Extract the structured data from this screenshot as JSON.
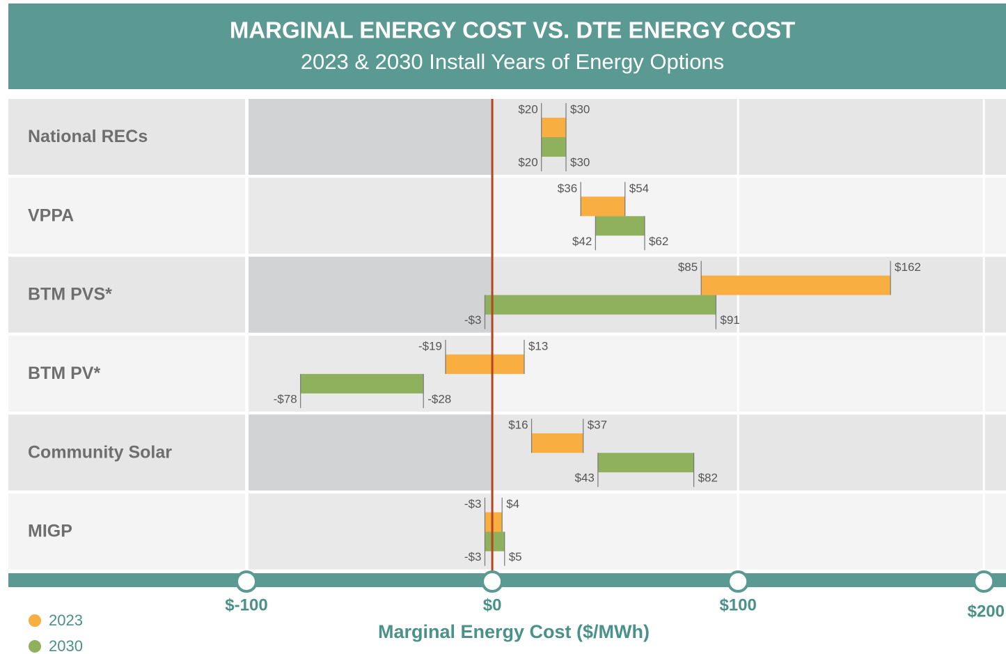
{
  "chart_data": {
    "type": "range_bar",
    "title": "MARGINAL ENERGY COST VS. DTE ENERGY COST",
    "subtitle": "2023 & 2030 Install Years of Energy Options",
    "xlabel": "Marginal Energy Cost ($/MWh)",
    "categories": [
      "National RECs",
      "VPPA",
      "BTM PVS*",
      "BTM PV*",
      "Community Solar",
      "MIGP"
    ],
    "series": [
      {
        "name": "2023",
        "color": "#f9ae42",
        "values": [
          [
            20,
            30
          ],
          [
            36,
            54
          ],
          [
            85,
            162
          ],
          [
            -19,
            13
          ],
          [
            16,
            37
          ],
          [
            -3,
            4
          ]
        ],
        "value_labels": [
          [
            "$20",
            "$30"
          ],
          [
            "$36",
            "$54"
          ],
          [
            "$85",
            "$162"
          ],
          [
            "-$19",
            "$13"
          ],
          [
            "$16",
            "$37"
          ],
          [
            "-$3",
            "$4"
          ]
        ]
      },
      {
        "name": "2030",
        "color": "#8fb15d",
        "values": [
          [
            20,
            30
          ],
          [
            42,
            62
          ],
          [
            -3,
            91
          ],
          [
            -78,
            -28
          ],
          [
            43,
            82
          ],
          [
            -3,
            5
          ]
        ],
        "value_labels": [
          [
            "$20",
            "$30"
          ],
          [
            "$42",
            "$62"
          ],
          [
            "-$3",
            "$91"
          ],
          [
            "-$78",
            "-$28"
          ],
          [
            "$43",
            "$82"
          ],
          [
            "-$3",
            "$5"
          ]
        ]
      }
    ],
    "xlim": [
      -100,
      209
    ],
    "xticks": [
      {
        "value": -100,
        "label": "$-100"
      },
      {
        "value": 0,
        "label": "$0"
      },
      {
        "value": 100,
        "label": "$100"
      },
      {
        "value": 200,
        "label": "$200"
      }
    ],
    "grid": true
  }
}
